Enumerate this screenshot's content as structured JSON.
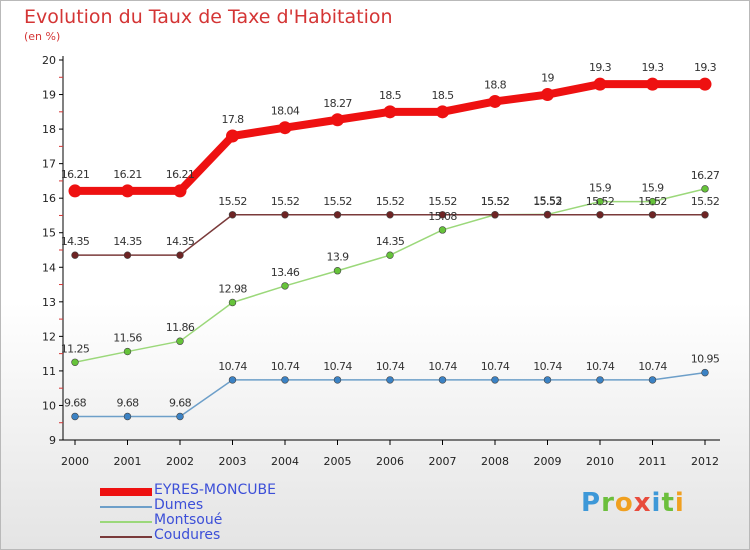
{
  "title": "Evolution du Taux de Taxe d'Habitation",
  "unit_label": "(en %)",
  "logo_text": "Proxiti",
  "colors": {
    "title": "#d43535",
    "legend_text": "#3c4fd8",
    "axis": "#000000",
    "tick_mark": "#d43535"
  },
  "chart_data": {
    "type": "line",
    "categories": [
      "2000",
      "2001",
      "2002",
      "2003",
      "2004",
      "2005",
      "2006",
      "2007",
      "2008",
      "2009",
      "2010",
      "2011",
      "2012"
    ],
    "ylim": [
      9,
      20
    ],
    "yticks": [
      "9",
      "10",
      "11",
      "12",
      "13",
      "14",
      "15",
      "16",
      "17",
      "18",
      "19",
      "20"
    ],
    "grid": false,
    "legend_position": "bottom-left",
    "series": [
      {
        "name": "EYRES-MONCUBE",
        "color": "#ee1111",
        "thick": true,
        "values": [
          16.21,
          16.21,
          16.21,
          17.8,
          18.04,
          18.27,
          18.5,
          18.5,
          18.8,
          19,
          19.3,
          19.3,
          19.3
        ],
        "labels": [
          "16.21",
          "16.21",
          "16.21",
          "17.8",
          "18.04",
          "18.27",
          "18.5",
          "18.5",
          "18.8",
          "19",
          "19.3",
          "19.3",
          "19.3"
        ]
      },
      {
        "name": "Dumes",
        "color": "#6d9fc9",
        "dot": "#3b82c4",
        "thick": false,
        "values": [
          9.68,
          9.68,
          9.68,
          10.74,
          10.74,
          10.74,
          10.74,
          10.74,
          10.74,
          10.74,
          10.74,
          10.74,
          10.95
        ],
        "labels": [
          "9.68",
          "9.68",
          "9.68",
          "10.74",
          "10.74",
          "10.74",
          "10.74",
          "10.74",
          "10.74",
          "10.74",
          "10.74",
          "10.74",
          "10.95"
        ]
      },
      {
        "name": "Montsoué",
        "color": "#9bd87a",
        "dot": "#66c33a",
        "thick": false,
        "values": [
          11.25,
          11.56,
          11.86,
          12.98,
          13.46,
          13.9,
          14.35,
          15.08,
          15.52,
          15.53,
          15.9,
          15.9,
          16.27
        ],
        "labels": [
          "11.25",
          "11.56",
          "11.86",
          "12.98",
          "13.46",
          "13.9",
          "14.35",
          "15.08",
          "15.52",
          "15.53",
          "15.9",
          "15.9",
          "16.27"
        ]
      },
      {
        "name": "Coudures",
        "color": "#7a3a3a",
        "dot": "#6e2424",
        "thick": false,
        "values": [
          14.35,
          14.35,
          14.35,
          15.52,
          15.52,
          15.52,
          15.52,
          15.52,
          15.52,
          15.52,
          15.52,
          15.52,
          15.52
        ],
        "labels": [
          "14.35",
          "14.35",
          "14.35",
          "15.52",
          "15.52",
          "15.52",
          "15.52",
          "15.52",
          "15.52",
          "15.52",
          "15.52",
          "15.52",
          "15.52"
        ]
      }
    ]
  }
}
